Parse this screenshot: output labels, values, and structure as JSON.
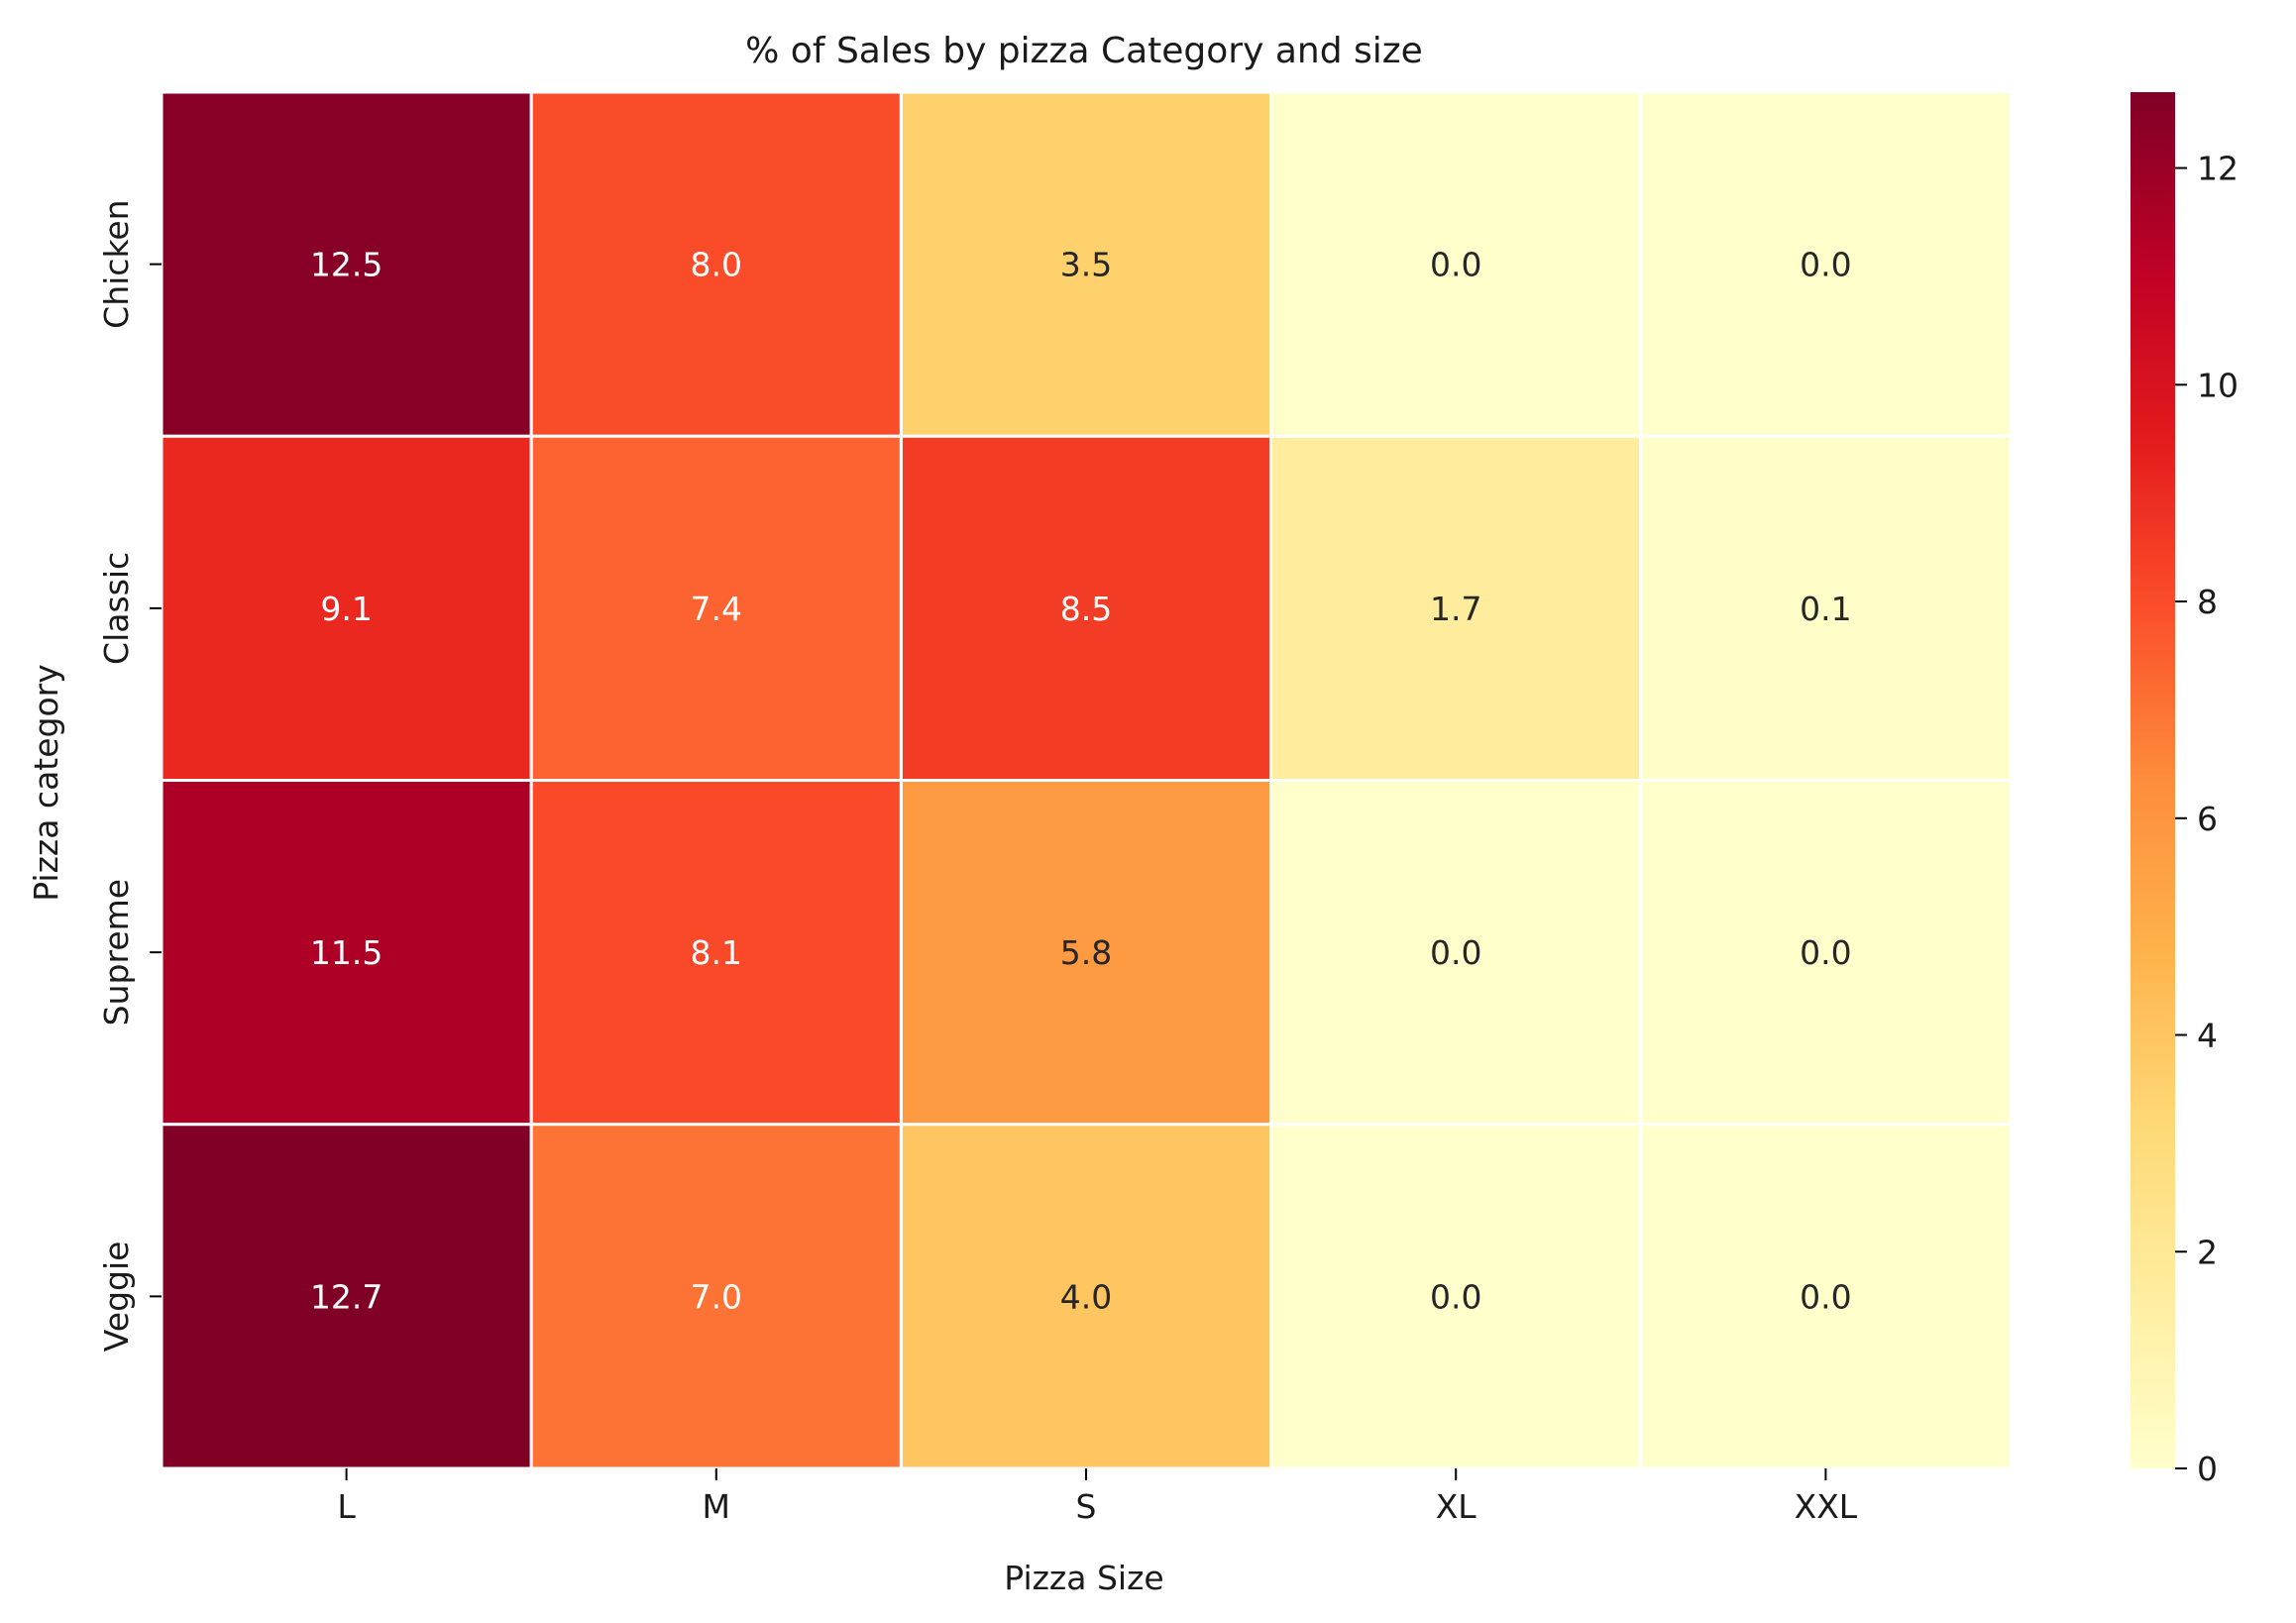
{
  "chart_data": {
    "type": "heatmap",
    "title": "% of Sales by pizza Category and size",
    "xlabel": "Pizza Size",
    "ylabel": "Pizza category",
    "x_categories": [
      "L",
      "M",
      "S",
      "XL",
      "XXL"
    ],
    "y_categories": [
      "Chicken",
      "Classic",
      "Supreme",
      "Veggie"
    ],
    "values": [
      [
        12.5,
        8.0,
        3.5,
        0.0,
        0.0
      ],
      [
        9.1,
        7.4,
        8.5,
        1.7,
        0.1
      ],
      [
        11.5,
        8.1,
        5.8,
        0.0,
        0.0
      ],
      [
        12.7,
        7.0,
        4.0,
        0.0,
        0.0
      ]
    ],
    "cell_labels": [
      [
        "12.5",
        "8.0",
        "3.5",
        "0.0",
        "0.0"
      ],
      [
        "9.1",
        "7.4",
        "8.5",
        "1.7",
        "0.1"
      ],
      [
        "11.5",
        "8.1",
        "5.8",
        "0.0",
        "0.0"
      ],
      [
        "12.7",
        "7.0",
        "4.0",
        "0.0",
        "0.0"
      ]
    ],
    "colormap": "YlOrRd",
    "vmin": 0,
    "vmax": 12.7,
    "colorbar_ticks": [
      "0",
      "2",
      "4",
      "6",
      "8",
      "10",
      "12"
    ],
    "legend": "colorbar-right",
    "grid": false
  }
}
